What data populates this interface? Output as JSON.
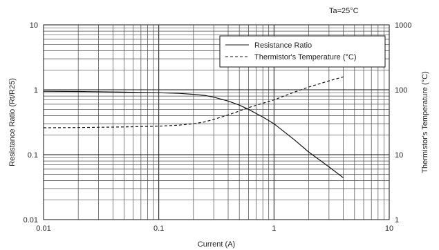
{
  "chart_data": {
    "type": "line",
    "annotation": "Ta=25°C",
    "xlabel": "Current (A)",
    "ylabel_left": "Resistance Ratio (Rt/R25)",
    "ylabel_right": "Thermistor's Temperature (°C)",
    "x_scale": "log",
    "y_scale_left": "log",
    "y_scale_right": "log",
    "xlim": [
      0.01,
      10
    ],
    "ylim_left": [
      0.01,
      10
    ],
    "ylim_right": [
      1,
      1000
    ],
    "x_ticks": [
      "0.01",
      "0.1",
      "1",
      "10"
    ],
    "y_ticks_left": [
      "0.01",
      "0.1",
      "1",
      "10"
    ],
    "y_ticks_right": [
      "1",
      "10",
      "100",
      "1000"
    ],
    "grid": true,
    "legend_position": "top-right",
    "series": [
      {
        "name": "Resistance Ratio",
        "axis": "left",
        "style": "solid",
        "x": [
          0.01,
          0.02,
          0.05,
          0.1,
          0.15,
          0.2,
          0.25,
          0.3,
          0.4,
          0.5,
          0.6,
          0.8,
          1.0,
          1.5,
          2.0,
          3.0,
          4.0
        ],
        "y": [
          0.95,
          0.94,
          0.92,
          0.9,
          0.88,
          0.85,
          0.82,
          0.77,
          0.67,
          0.58,
          0.5,
          0.38,
          0.3,
          0.17,
          0.11,
          0.065,
          0.044
        ]
      },
      {
        "name": "Thermistor's Temperature (°C)",
        "axis": "right",
        "style": "dashed",
        "x": [
          0.01,
          0.02,
          0.05,
          0.1,
          0.15,
          0.2,
          0.25,
          0.3,
          0.4,
          0.5,
          0.6,
          0.8,
          1.0,
          1.5,
          2.0,
          3.0,
          4.0
        ],
        "y": [
          26,
          26.2,
          26.8,
          27.5,
          28.5,
          30,
          32,
          35,
          41,
          47,
          53,
          62,
          70,
          92,
          110,
          137,
          158
        ]
      }
    ]
  }
}
